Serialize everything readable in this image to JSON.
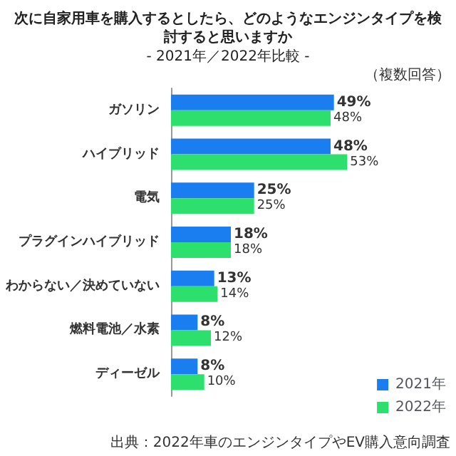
{
  "chart_data": {
    "type": "bar",
    "orientation": "horizontal",
    "title": "次に自家用車を購入するとしたら、どのようなエンジンタイプを検討すると思いますか",
    "subtitle": "- 2021年／2022年比較 -",
    "categories": [
      "ガソリン",
      "ハイブリッド",
      "電気",
      "プラグインハイブリッド",
      "わからない／決めていない",
      "燃料電池／水素",
      "ディーゼル"
    ],
    "series": [
      {
        "name": "2021年",
        "color": "#1a7ef0",
        "values": [
          49,
          48,
          25,
          18,
          13,
          8,
          8
        ],
        "value_labels": [
          "49%",
          "48%",
          "25%",
          "18%",
          "13%",
          "8%",
          "8%"
        ]
      },
      {
        "name": "2022年",
        "color": "#2de06e",
        "values": [
          48,
          53,
          25,
          18,
          14,
          12,
          10
        ],
        "value_labels": [
          "48%",
          "53%",
          "25%",
          "18%",
          "14%",
          "12%",
          "10%"
        ]
      }
    ],
    "legend": "bottom right",
    "annotations": [
      "（複数回答）",
      "出典：2022年車のエンジンタイプやEV購入意向調査"
    ]
  }
}
